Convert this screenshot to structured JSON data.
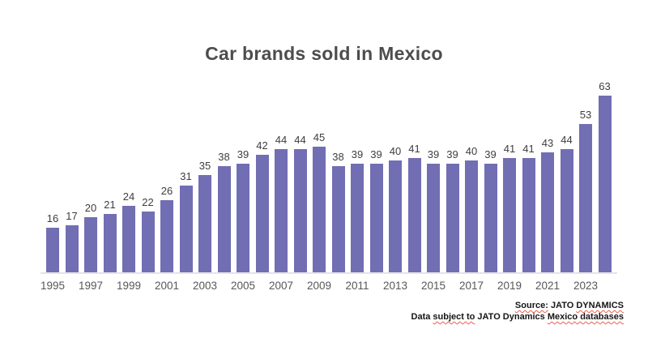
{
  "chart_data": {
    "type": "bar",
    "title": "Car brands sold in Mexico",
    "categories": [
      "1995",
      "1996",
      "1997",
      "1998",
      "1999",
      "2000",
      "2001",
      "2002",
      "2003",
      "2004",
      "2005",
      "2006",
      "2007",
      "2008",
      "2009",
      "2010",
      "2011",
      "2012",
      "2013",
      "2014",
      "2015",
      "2016",
      "2017",
      "2018",
      "2019",
      "2020",
      "2021",
      "2022",
      "2023",
      "2024"
    ],
    "values": [
      16,
      17,
      20,
      21,
      24,
      22,
      26,
      31,
      35,
      38,
      39,
      42,
      44,
      44,
      45,
      38,
      39,
      39,
      40,
      41,
      39,
      39,
      40,
      39,
      41,
      41,
      43,
      44,
      53,
      63
    ],
    "x_tick_labels": [
      "1995",
      "1997",
      "1999",
      "2001",
      "2003",
      "2005",
      "2007",
      "2009",
      "2011",
      "2013",
      "2015",
      "2017",
      "2019",
      "2021",
      "2023"
    ],
    "xlabel": "",
    "ylabel": "",
    "ylim": [
      0,
      65
    ],
    "grid": false,
    "legend": null,
    "value_labels_shown": true,
    "bar_color": "#716eb3",
    "title_color": "#4d4d4d",
    "value_label_color": "#3d3d3d",
    "tick_label_color": "#575757",
    "axis_line_color": "#e4e4e8"
  },
  "source": {
    "spellcheck_color": "#e8604c",
    "lines": [
      {
        "text": "Source: JATO DYNAMICS",
        "segments": [
          {
            "text": "Source:",
            "misspelled": true
          },
          {
            "text": " JATO ",
            "misspelled": false
          },
          {
            "text": "DYNAMICS",
            "misspelled": true
          }
        ]
      },
      {
        "text": "Data subject to JATO Dynamics Mexico databases",
        "segments": [
          {
            "text": "Data ",
            "misspelled": false
          },
          {
            "text": "subject to",
            "misspelled": true
          },
          {
            "text": " JATO Dynamics ",
            "misspelled": false
          },
          {
            "text": "Mexico databases",
            "misspelled": true
          }
        ]
      }
    ]
  }
}
